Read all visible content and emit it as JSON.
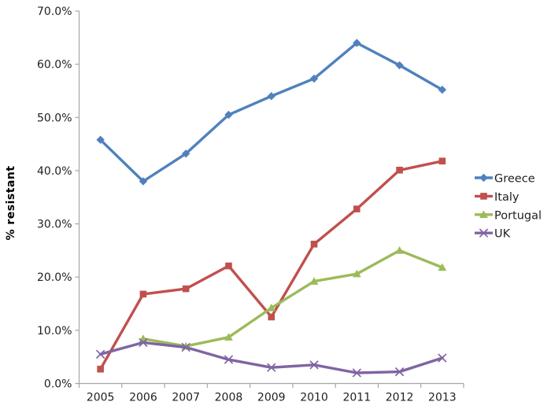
{
  "chart_data": {
    "type": "line",
    "title": "",
    "xlabel": "",
    "ylabel": "% resistant",
    "x_categories": [
      "2005",
      "2006",
      "2007",
      "2008",
      "2009",
      "2010",
      "2011",
      "2012",
      "2013"
    ],
    "y_tick_labels": [
      "0.0%",
      "10.0%",
      "20.0%",
      "30.0%",
      "40.0%",
      "50.0%",
      "60.0%",
      "70.0%"
    ],
    "ylim": [
      0,
      70
    ],
    "y_tick_step": 10,
    "grid": false,
    "legend_position": "right",
    "series": [
      {
        "name": "Greece",
        "color": "#4F81BD",
        "marker": "diamond",
        "values": [
          45.8,
          38.0,
          43.2,
          50.5,
          54.0,
          57.3,
          64.0,
          59.8,
          55.2
        ]
      },
      {
        "name": "Italy",
        "color": "#C0504D",
        "marker": "square",
        "values": [
          2.7,
          16.8,
          17.8,
          22.1,
          12.5,
          26.2,
          32.8,
          40.1,
          41.8
        ]
      },
      {
        "name": "Portugal",
        "color": "#9BBB59",
        "marker": "triangle",
        "values": [
          null,
          8.4,
          7.0,
          8.7,
          14.2,
          19.2,
          20.6,
          25.0,
          21.8
        ]
      },
      {
        "name": "UK",
        "color": "#8064A2",
        "marker": "x",
        "values": [
          5.5,
          7.7,
          6.8,
          4.5,
          3.0,
          3.5,
          2.0,
          2.2,
          4.8
        ]
      }
    ]
  },
  "colors": {
    "axis": "#A6A6A6",
    "text": "#1F1F1F",
    "background": "#FFFFFF"
  }
}
